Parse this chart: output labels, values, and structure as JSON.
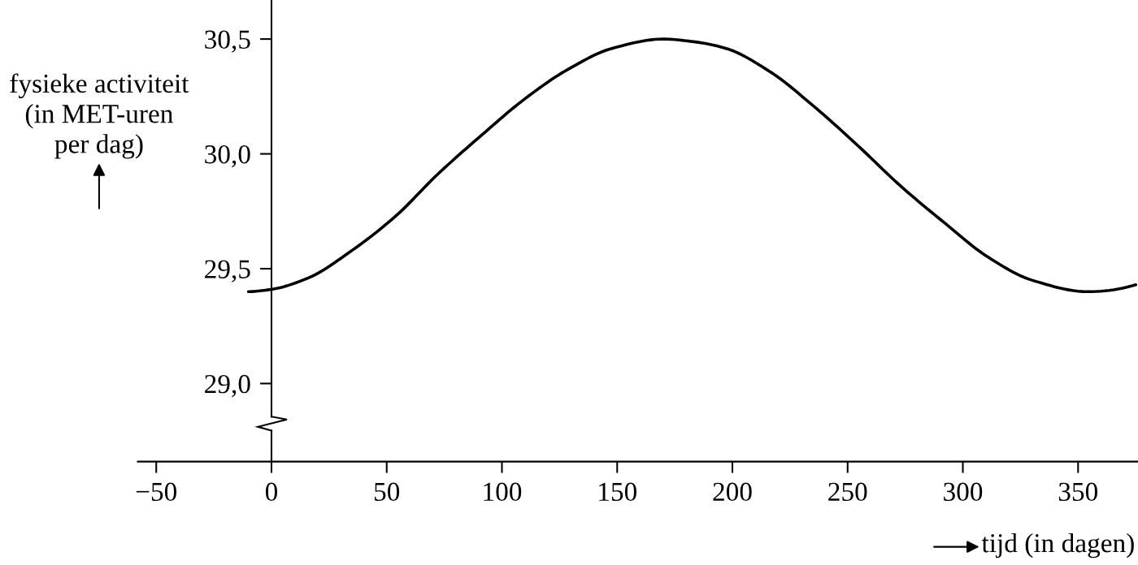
{
  "chart_data": {
    "type": "line",
    "xlabel": "tijd (in dagen)",
    "ylabel": "fysieke activiteit\n(in MET-uren\nper dag)",
    "x": [
      -10,
      0,
      16,
      35,
      54,
      72,
      91,
      110,
      129,
      148,
      170,
      182,
      197,
      216,
      235,
      254,
      273,
      292,
      311,
      330,
      354,
      375
    ],
    "values": [
      29.4,
      29.41,
      29.46,
      29.58,
      29.73,
      29.91,
      30.08,
      30.24,
      30.37,
      30.46,
      30.5,
      30.49,
      30.46,
      30.36,
      30.21,
      30.04,
      29.86,
      29.7,
      29.55,
      29.45,
      29.4,
      29.43
    ],
    "color": "#000000",
    "line_style": "solid",
    "xlim": [
      -58,
      376
    ],
    "ylim": [
      28.66,
      30.67
    ],
    "xticks": [
      {
        "value": -50,
        "label": "−50"
      },
      0,
      50,
      100,
      150,
      200,
      250,
      300,
      350
    ],
    "yticks": [
      {
        "value": 29.0,
        "label": "29,0"
      },
      {
        "value": 29.5,
        "label": "29,5"
      },
      {
        "value": 30.0,
        "label": "30,0"
      },
      {
        "value": 30.5,
        "label": "30,5"
      }
    ]
  }
}
